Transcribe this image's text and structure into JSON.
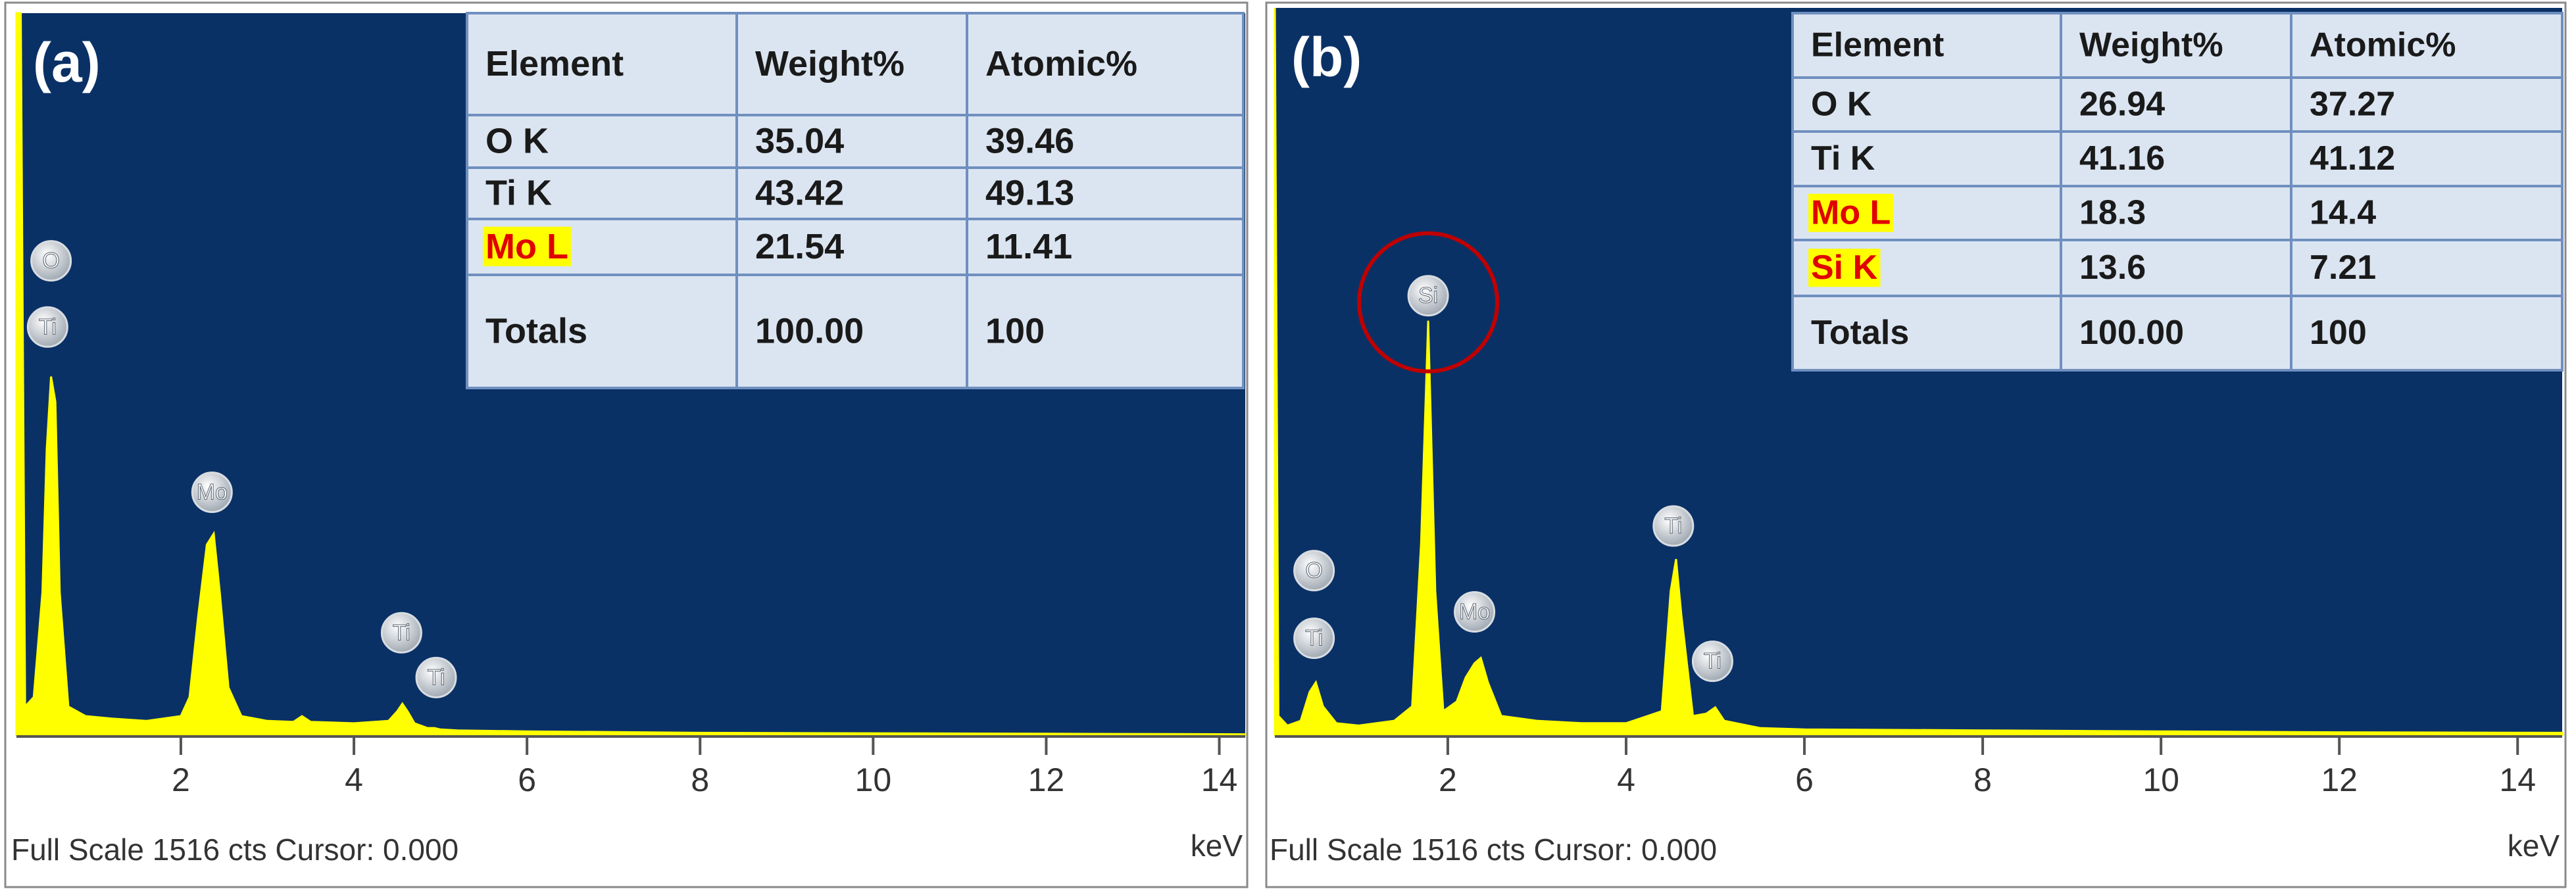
{
  "chart_data": [
    {
      "type": "line",
      "panel_label": "(a)",
      "x": [
        0.1,
        0.15,
        0.2,
        0.3,
        0.4,
        0.45,
        0.5,
        0.55,
        0.6,
        0.7,
        0.9,
        1.2,
        1.6,
        2.0,
        2.1,
        2.2,
        2.3,
        2.38,
        2.45,
        2.55,
        2.7,
        3.0,
        3.3,
        3.4,
        3.5,
        4.0,
        4.4,
        4.5,
        4.56,
        4.62,
        4.7,
        4.85,
        4.93,
        5.0,
        5.2,
        6,
        8,
        10,
        12,
        14.3
      ],
      "series": [
        {
          "color": "#ffff00",
          "values": [
            1516,
            1516,
            60,
            80,
            300,
            600,
            753,
            700,
            300,
            60,
            40,
            35,
            30,
            40,
            80,
            250,
            400,
            423,
            300,
            100,
            40,
            30,
            28,
            40,
            28,
            25,
            30,
            50,
            66,
            50,
            25,
            15,
            15,
            12,
            10,
            8,
            5,
            4,
            3,
            2
          ]
        }
      ],
      "xlim": [
        0.1,
        14.3
      ],
      "xticks": [
        2,
        4,
        6,
        8,
        10,
        12,
        14
      ],
      "ylim": [
        0,
        1516
      ],
      "xlabel": "keV",
      "footer": "Full Scale 1516 cts Cursor: 0.000",
      "background": "#0a3166",
      "annotations": [
        {
          "text": "O",
          "x": 0.5,
          "y": 996
        },
        {
          "text": "Ti",
          "x": 0.46,
          "y": 857
        },
        {
          "text": "Mo",
          "x": 2.36,
          "y": 510
        },
        {
          "text": "Ti",
          "x": 4.55,
          "y": 215
        },
        {
          "text": "Ti",
          "x": 4.95,
          "y": 121
        }
      ],
      "table": {
        "header": [
          "Element",
          "Weight%",
          "Atomic%"
        ],
        "rows": [
          [
            "O K",
            "35.04",
            "39.46"
          ],
          [
            "Ti K",
            "43.42",
            "49.13"
          ],
          [
            "Mo L",
            "21.54",
            "11.41"
          ],
          [
            "Totals",
            "100.00",
            "100"
          ]
        ],
        "highlight_rows": [
          2
        ]
      }
    },
    {
      "type": "line",
      "panel_label": "(b)",
      "x": [
        0.06,
        0.1,
        0.2,
        0.35,
        0.45,
        0.52,
        0.6,
        0.75,
        1.0,
        1.4,
        1.6,
        1.7,
        1.78,
        1.86,
        1.95,
        2.1,
        2.2,
        2.3,
        2.37,
        2.45,
        2.6,
        3.0,
        3.5,
        4.0,
        4.4,
        4.5,
        4.56,
        4.62,
        4.75,
        4.9,
        5.0,
        5.1,
        5.5,
        6,
        8,
        10,
        12,
        14.5
      ],
      "series": [
        {
          "color": "#ffff00",
          "values": [
            1516,
            40,
            20,
            30,
            90,
            110,
            60,
            25,
            20,
            30,
            60,
            400,
            864,
            300,
            50,
            70,
            120,
            150,
            161,
            110,
            40,
            30,
            25,
            25,
            50,
            300,
            367,
            250,
            40,
            45,
            58,
            30,
            15,
            12,
            10,
            8,
            6,
            5
          ]
        }
      ],
      "xlim": [
        0.06,
        14.5
      ],
      "xticks": [
        2,
        4,
        6,
        8,
        10,
        12,
        14
      ],
      "ylim": [
        0,
        1516
      ],
      "xlabel": "keV",
      "footer": "Full Scale 1516 cts Cursor: 0.000",
      "background": "#0a3166",
      "annotations": [
        {
          "text": "Si",
          "x": 1.78,
          "y": 916
        },
        {
          "text": "O",
          "x": 0.5,
          "y": 343
        },
        {
          "text": "Ti",
          "x": 0.5,
          "y": 202
        },
        {
          "text": "Mo",
          "x": 2.3,
          "y": 257
        },
        {
          "text": "Ti",
          "x": 4.53,
          "y": 436
        },
        {
          "text": "Ti",
          "x": 4.97,
          "y": 154
        }
      ],
      "highlight_annotation": 0,
      "table": {
        "header": [
          "Element",
          "Weight%",
          "Atomic%"
        ],
        "rows": [
          [
            "O K",
            "26.94",
            "37.27"
          ],
          [
            "Ti K",
            "41.16",
            "41.12"
          ],
          [
            "Mo L",
            "18.3",
            "14.4"
          ],
          [
            "Si K",
            "13.6",
            "7.21"
          ],
          [
            "Totals",
            "100.00",
            "100"
          ]
        ],
        "highlight_rows": [
          2,
          3
        ]
      }
    }
  ]
}
